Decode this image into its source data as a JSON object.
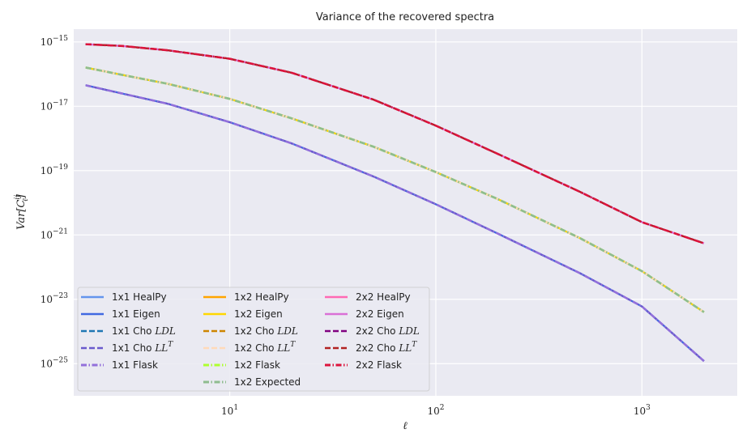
{
  "chart_data": {
    "type": "line",
    "title": "Variance of the recovered spectra",
    "xlabel": "ℓ",
    "ylabel": "Var[C_ℓ^ij]",
    "xscale": "log",
    "yscale": "log",
    "xlim": [
      1.75,
      2900
    ],
    "ylim": [
      1e-26,
      2.5e-15
    ],
    "x_ticks": [
      {
        "base": "10",
        "exp": "1",
        "value": 10
      },
      {
        "base": "10",
        "exp": "2",
        "value": 100
      },
      {
        "base": "10",
        "exp": "3",
        "value": 1000
      }
    ],
    "y_ticks": [
      {
        "base": "10",
        "exp": "−15",
        "value": 1e-15
      },
      {
        "base": "10",
        "exp": "−17",
        "value": 1e-17
      },
      {
        "base": "10",
        "exp": "−19",
        "value": 1e-19
      },
      {
        "base": "10",
        "exp": "−21",
        "value": 1e-21
      },
      {
        "base": "10",
        "exp": "−23",
        "value": 1e-23
      },
      {
        "base": "10",
        "exp": "−25",
        "value": 1e-25
      }
    ],
    "grid": true,
    "legend_position": "lower-left",
    "x": [
      2,
      3,
      5,
      10,
      20,
      50,
      100,
      200,
      500,
      1000,
      2000
    ],
    "curves": {
      "1x1": [
        4.5e-17,
        2.5e-17,
        1.2e-17,
        3.2e-18,
        7e-19,
        6.5e-20,
        9e-21,
        1.1e-21,
        6.5e-23,
        6e-24,
        1.2e-25
      ],
      "1x2": [
        1.6e-16,
        9.5e-17,
        5e-17,
        1.7e-17,
        4.2e-18,
        5.5e-19,
        9e-20,
        1.3e-20,
        8e-22,
        7.5e-23,
        4e-24
      ],
      "2x2": [
        8.5e-16,
        7.5e-16,
        5.5e-16,
        3e-16,
        1.1e-16,
        1.6e-17,
        2.5e-18,
        3.3e-19,
        2.2e-20,
        2.5e-21,
        5.5e-22
      ]
    },
    "series": [
      {
        "name": "1x1 HealPy",
        "curve": "1x1",
        "color": "#6495ed",
        "dash": "solid",
        "width": 2.2
      },
      {
        "name": "1x1 Eigen",
        "curve": "1x1",
        "color": "#4169e1",
        "dash": "solid",
        "width": 2.2
      },
      {
        "name": "1x1 Cho LDL",
        "curve": "1x1",
        "color": "#1f77b4",
        "dash": "dashed",
        "width": 2.2
      },
      {
        "name": "1x1 Cho LL^T",
        "curve": "1x1",
        "color": "#6a5acd",
        "dash": "dashed",
        "width": 2.2
      },
      {
        "name": "1x1 Flask",
        "curve": "1x1",
        "color": "#9370db",
        "dash": "dashdot",
        "width": 2.6
      },
      {
        "name": "1x2 HealPy",
        "curve": "1x2",
        "color": "#ffa500",
        "dash": "solid",
        "width": 2.2
      },
      {
        "name": "1x2 Eigen",
        "curve": "1x2",
        "color": "#ffd700",
        "dash": "solid",
        "width": 2.2
      },
      {
        "name": "1x2 Cho LDL",
        "curve": "1x2",
        "color": "#cd8500",
        "dash": "dashed",
        "width": 2.2
      },
      {
        "name": "1x2 Cho LL^T",
        "curve": "1x2",
        "color": "#ffdab9",
        "dash": "dashed",
        "width": 2.2
      },
      {
        "name": "1x2 Flask",
        "curve": "1x2",
        "color": "#adff2f",
        "dash": "dashdot",
        "width": 2.6
      },
      {
        "name": "1x2 Expected",
        "curve": "1x2",
        "color": "#8fbc8f",
        "dash": "dashdot",
        "width": 2.6
      },
      {
        "name": "2x2 HealPy",
        "curve": "2x2",
        "color": "#ff69b4",
        "dash": "solid",
        "width": 2.2
      },
      {
        "name": "2x2 Eigen",
        "curve": "2x2",
        "color": "#da70d6",
        "dash": "solid",
        "width": 2.2
      },
      {
        "name": "2x2 Cho LDL",
        "curve": "2x2",
        "color": "#800080",
        "dash": "dashed",
        "width": 2.2
      },
      {
        "name": "2x2 Cho LL^T",
        "curve": "2x2",
        "color": "#b22222",
        "dash": "dashed",
        "width": 2.2
      },
      {
        "name": "2x2 Flask",
        "curve": "2x2",
        "color": "#dc143c",
        "dash": "dashdot",
        "width": 2.6
      }
    ]
  }
}
